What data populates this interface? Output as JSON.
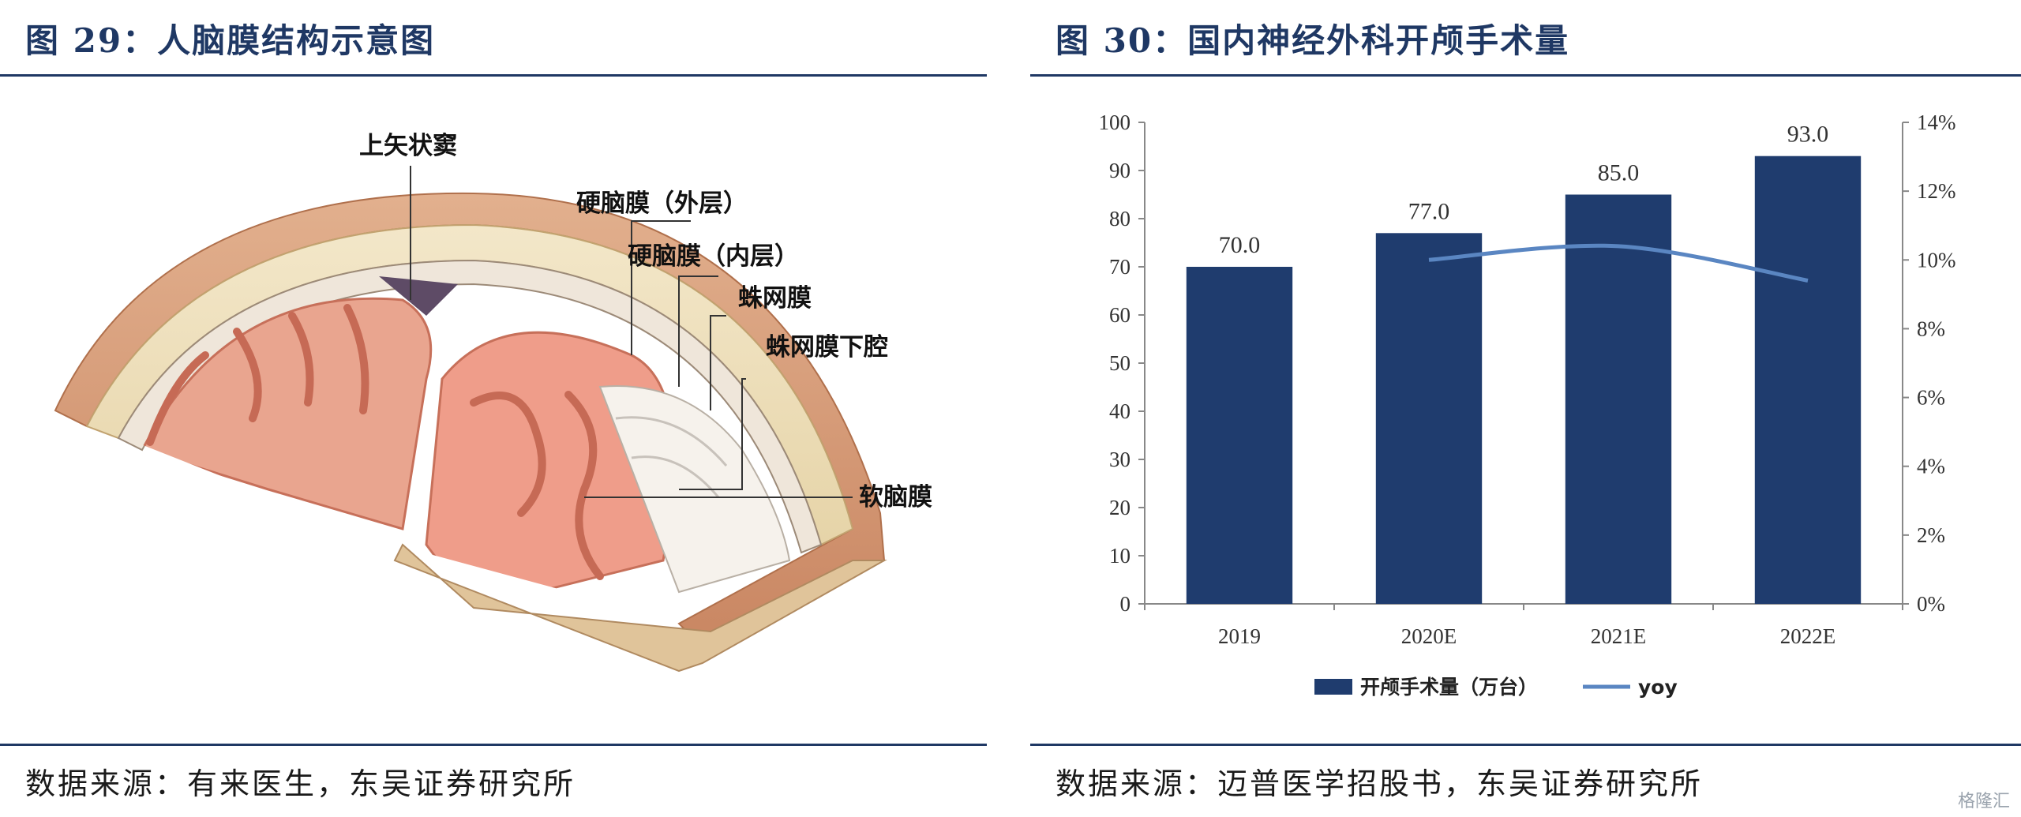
{
  "left": {
    "title": "图 29：人脑膜结构示意图",
    "source": "数据来源：有来医生，东吴证券研究所",
    "labels": {
      "sinus": "上矢状窦",
      "dura_outer": "硬脑膜（外层）",
      "dura_inner": "硬脑膜（内层）",
      "arachnoid": "蛛网膜",
      "subarachnoid": "蛛网膜下腔",
      "pia": "软脑膜"
    }
  },
  "right": {
    "title": "图 30：国内神经外科开颅手术量",
    "source": "数据来源：迈普医学招股书，东吴证券研究所",
    "chart_data": {
      "type": "bar",
      "categories": [
        "2019",
        "2020E",
        "2021E",
        "2022E"
      ],
      "series": [
        {
          "name": "开颅手术量（万台）",
          "type": "bar",
          "axis": "left",
          "values": [
            70.0,
            77.0,
            85.0,
            93.0
          ],
          "labels": [
            "70.0",
            "77.0",
            "85.0",
            "93.0"
          ],
          "color": "#1f3c6e"
        },
        {
          "name": "yoy",
          "type": "line",
          "axis": "right",
          "values": [
            null,
            10.0,
            10.4,
            9.4
          ],
          "color": "#5a86c2"
        }
      ],
      "y_left": {
        "min": 0,
        "max": 100,
        "step": 10,
        "ticks": [
          "0",
          "10",
          "20",
          "30",
          "40",
          "50",
          "60",
          "70",
          "80",
          "90",
          "100"
        ]
      },
      "y_right": {
        "min": 0,
        "max": 14,
        "step": 2,
        "ticks": [
          "0%",
          "2%",
          "4%",
          "6%",
          "8%",
          "10%",
          "12%",
          "14%"
        ]
      },
      "legend_position": "bottom",
      "grid": false
    }
  },
  "watermark": "格隆汇"
}
